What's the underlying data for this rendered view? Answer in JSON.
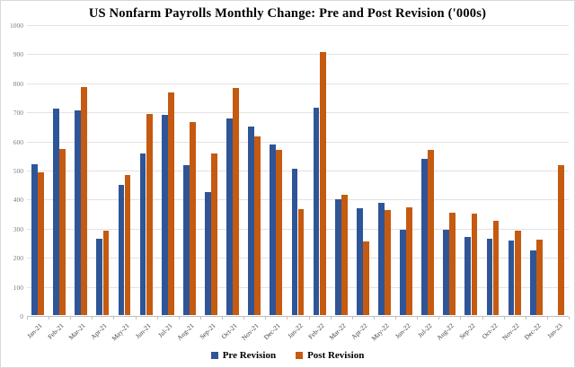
{
  "title": "US Nonfarm Payrolls Monthly Change: Pre and Post Revision ('000s)",
  "chart_data": {
    "type": "bar",
    "categories": [
      "Jan-21",
      "Feb-21",
      "Mar-21",
      "Apr-21",
      "May-21",
      "Jun-21",
      "Jul-21",
      "Aug-21",
      "Sep-21",
      "Oct-21",
      "Nov-21",
      "Dec-21",
      "Jan-22",
      "Feb-22",
      "Mar-22",
      "Apr-22",
      "May-22",
      "Jun-22",
      "Jul-22",
      "Aug-22",
      "Sep-22",
      "Oct-22",
      "Nov-22",
      "Dec-22",
      "Jan-23"
    ],
    "series": [
      {
        "name": "Pre Revision",
        "color": "#2F5597",
        "values": [
          520,
          710,
          704,
          263,
          447,
          557,
          689,
          517,
          424,
          677,
          647,
          588,
          504,
          714,
          398,
          368,
          386,
          293,
          537,
          292,
          269,
          263,
          256,
          223,
          null
        ]
      },
      {
        "name": "Post Revision",
        "color": "#C55A11",
        "values": [
          490,
          570,
          784,
          289,
          481,
          690,
          766,
          663,
          557,
          781,
          615,
          568,
          364,
          904,
          414,
          254,
          360,
          370,
          568,
          352,
          350,
          324,
          290,
          260,
          517
        ]
      }
    ],
    "xlabel": "",
    "ylabel": "",
    "ylim": [
      0,
      1000
    ],
    "ytick_step": 100,
    "grid": true,
    "legend_position": "bottom"
  },
  "colors": {
    "background": "#FFFFFF",
    "gridline": "#E2E2E2",
    "axis_line": "#BFBFBF",
    "y_tick_label": "#7F7F7F",
    "x_tick_label": "#404040",
    "title": "#000000"
  }
}
